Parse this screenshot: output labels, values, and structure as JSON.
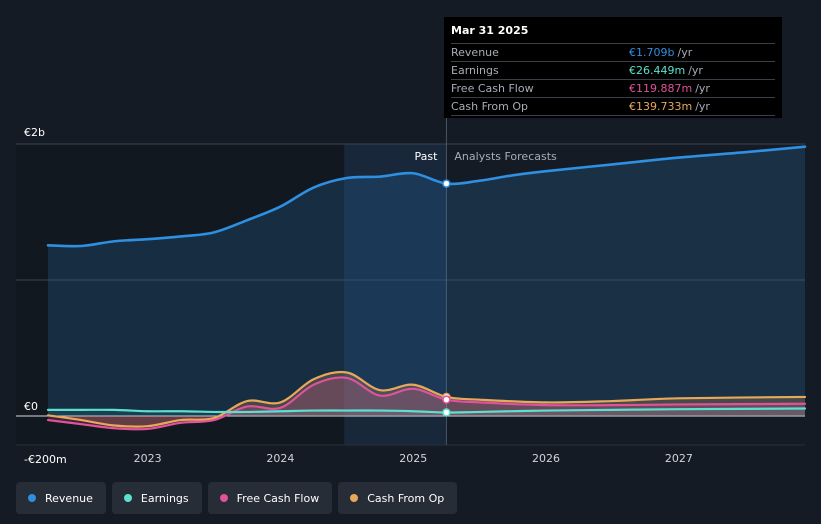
{
  "tooltip": {
    "date": "Mar 31 2025",
    "rows": [
      {
        "name": "Revenue",
        "value": "€1.709b",
        "unit": "/yr",
        "color": "#2f8fe0"
      },
      {
        "name": "Earnings",
        "value": "€26.449m",
        "unit": "/yr",
        "color": "#5de0cf"
      },
      {
        "name": "Free Cash Flow",
        "value": "€119.887m",
        "unit": "/yr",
        "color": "#e0529a"
      },
      {
        "name": "Cash From Op",
        "value": "€139.733m",
        "unit": "/yr",
        "color": "#e8a85a"
      }
    ]
  },
  "legend": [
    {
      "label": "Revenue",
      "color": "#2f8fe0"
    },
    {
      "label": "Earnings",
      "color": "#5de0cf"
    },
    {
      "label": "Free Cash Flow",
      "color": "#e0529a"
    },
    {
      "label": "Cash From Op",
      "color": "#e8a85a"
    }
  ],
  "chart_data": {
    "type": "line",
    "ylim": [
      -200,
      2000
    ],
    "y_tick_labels": [
      "€2b",
      "€0",
      "-€200m"
    ],
    "x_tick_labels": [
      "2023",
      "2024",
      "2025",
      "2026",
      "2027"
    ],
    "x_range": [
      2022.25,
      2027.95
    ],
    "region_labels": {
      "past": "Past",
      "forecast": "Analysts Forecasts"
    },
    "past_end": 2025.25,
    "grid": true,
    "legend_position": "bottom",
    "series": [
      {
        "name": "Revenue",
        "color": "#2f8fe0",
        "x": [
          2022.25,
          2022.5,
          2022.75,
          2023.0,
          2023.25,
          2023.5,
          2023.75,
          2024.0,
          2024.25,
          2024.5,
          2024.75,
          2025.0,
          2025.25,
          2025.5,
          2025.75,
          2026.0,
          2026.5,
          2027.0,
          2027.5,
          2027.95
        ],
        "values": [
          1255,
          1250,
          1285,
          1300,
          1320,
          1350,
          1440,
          1540,
          1680,
          1750,
          1760,
          1785,
          1709,
          1730,
          1770,
          1800,
          1850,
          1900,
          1940,
          1980
        ]
      },
      {
        "name": "Earnings",
        "color": "#5de0cf",
        "x": [
          2022.25,
          2022.5,
          2022.75,
          2023.0,
          2023.25,
          2023.5,
          2023.75,
          2024.0,
          2024.25,
          2024.5,
          2024.75,
          2025.0,
          2025.25,
          2025.5,
          2026.0,
          2026.5,
          2027.0,
          2027.95
        ],
        "values": [
          45,
          45,
          45,
          35,
          35,
          30,
          30,
          35,
          40,
          40,
          40,
          35,
          26,
          30,
          40,
          45,
          50,
          55
        ]
      },
      {
        "name": "Free Cash Flow",
        "color": "#e0529a",
        "x": [
          2022.25,
          2022.5,
          2022.75,
          2023.0,
          2023.25,
          2023.5,
          2023.75,
          2024.0,
          2024.25,
          2024.5,
          2024.75,
          2025.0,
          2025.25,
          2025.5,
          2026.0,
          2026.5,
          2027.0,
          2027.95
        ],
        "values": [
          -30,
          -60,
          -90,
          -95,
          -50,
          -30,
          70,
          60,
          230,
          280,
          150,
          200,
          120,
          100,
          80,
          80,
          85,
          90
        ]
      },
      {
        "name": "Cash From Op",
        "color": "#e8a85a",
        "x": [
          2022.25,
          2022.5,
          2022.75,
          2023.0,
          2023.25,
          2023.5,
          2023.75,
          2024.0,
          2024.25,
          2024.5,
          2024.75,
          2025.0,
          2025.25,
          2025.5,
          2026.0,
          2026.5,
          2027.0,
          2027.95
        ],
        "values": [
          5,
          -30,
          -70,
          -75,
          -30,
          -15,
          110,
          100,
          270,
          320,
          190,
          230,
          140,
          120,
          100,
          110,
          130,
          140
        ]
      }
    ]
  }
}
